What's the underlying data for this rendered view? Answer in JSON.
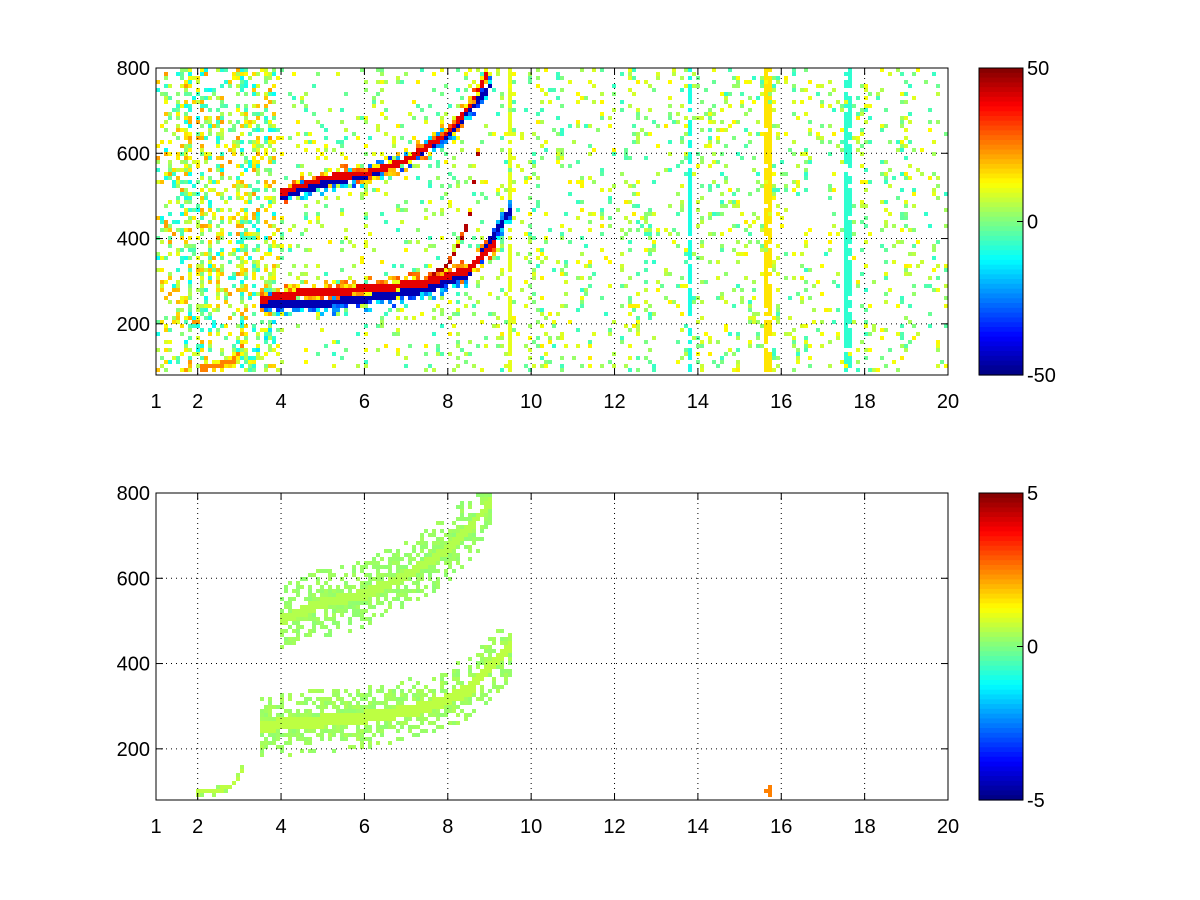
{
  "chart_data": [
    {
      "type": "heatmap",
      "title": "",
      "xlabel": "",
      "ylabel": "",
      "xlim": [
        1,
        20
      ],
      "ylim": [
        80,
        800
      ],
      "xticks": [
        1,
        2,
        4,
        6,
        8,
        10,
        12,
        14,
        16,
        18,
        20
      ],
      "xtick_labels": [
        "1",
        "2",
        "4",
        "6",
        "8",
        "10",
        "12",
        "14",
        "16",
        "18",
        "20"
      ],
      "yticks": [
        200,
        400,
        600,
        800
      ],
      "ytick_labels": [
        "200",
        "400",
        "600",
        "800"
      ],
      "grid": "dotted",
      "colormap": "jet",
      "colorbar": {
        "min": -50,
        "max": 50,
        "ticks": [
          50,
          0,
          -50
        ],
        "tick_labels": [
          "50",
          "0",
          "-50"
        ]
      },
      "features": [
        {
          "kind": "band",
          "x": [
            3.5,
            4.5,
            5.5,
            6.5,
            7.5,
            8.5,
            9.2
          ],
          "y": [
            250,
            265,
            270,
            278,
            290,
            320,
            390
          ],
          "value": 40,
          "width": 26,
          "thickness": 5
        },
        {
          "kind": "band",
          "x": [
            3.5,
            4.5,
            5.5,
            6.5,
            7.5,
            8.5,
            9.5
          ],
          "y": [
            240,
            240,
            245,
            258,
            275,
            310,
            460
          ],
          "value": -45,
          "width": 28,
          "thickness": 5
        },
        {
          "kind": "band",
          "x": [
            4.0,
            5.0,
            6.0,
            7.0,
            8.0,
            8.5,
            9.0
          ],
          "y": [
            500,
            535,
            545,
            575,
            640,
            700,
            790
          ],
          "value": 40,
          "width": 26,
          "thickness": 4
        },
        {
          "kind": "band",
          "x": [
            4.0,
            5.0,
            6.0,
            7.0,
            8.0,
            8.5,
            9.1
          ],
          "y": [
            490,
            520,
            540,
            575,
            635,
            690,
            760
          ],
          "value": -45,
          "width": 24,
          "thickness": 4
        },
        {
          "kind": "band",
          "x": [
            7.5,
            8.0,
            8.5,
            8.8
          ],
          "y": [
            300,
            330,
            430,
            650
          ],
          "value": 45,
          "width": 10,
          "thickness": 3
        },
        {
          "kind": "band",
          "x": [
            2.1,
            2.5,
            2.9,
            3.1
          ],
          "y": [
            90,
            95,
            110,
            150
          ],
          "value": 25,
          "width": 16,
          "thickness": 4
        },
        {
          "kind": "band",
          "x": [
            3.3,
            3.6,
            4.0
          ],
          "y": [
            110,
            155,
            230
          ],
          "value": -15,
          "width": 8,
          "thickness": 2
        }
      ],
      "stripes": [
        {
          "x": 15.7,
          "value": 15
        },
        {
          "x": 17.6,
          "value": -8
        },
        {
          "x": 13.8,
          "value": -10
        },
        {
          "x": 9.5,
          "value": 10
        }
      ]
    },
    {
      "type": "heatmap",
      "title": "",
      "xlabel": "",
      "ylabel": "",
      "xlim": [
        1,
        20
      ],
      "ylim": [
        80,
        800
      ],
      "xticks": [
        1,
        2,
        4,
        6,
        8,
        10,
        12,
        14,
        16,
        18,
        20
      ],
      "xtick_labels": [
        "1",
        "2",
        "4",
        "6",
        "8",
        "10",
        "12",
        "14",
        "16",
        "18",
        "20"
      ],
      "yticks": [
        200,
        400,
        600,
        800
      ],
      "ytick_labels": [
        "200",
        "400",
        "600",
        "800"
      ],
      "grid": "dotted",
      "colormap": "jet",
      "colorbar": {
        "min": -5,
        "max": 5,
        "ticks": [
          5,
          0,
          -5
        ],
        "tick_labels": [
          "5",
          "0",
          "-5"
        ]
      },
      "features": [
        {
          "kind": "band",
          "x": [
            3.5,
            4.5,
            5.5,
            6.5,
            7.5,
            8.5,
            9.5
          ],
          "y": [
            245,
            255,
            262,
            272,
            290,
            330,
            430
          ],
          "value": 0.6,
          "width": 75,
          "thickness": 8
        },
        {
          "kind": "band",
          "x": [
            4.0,
            5.0,
            6.0,
            7.0,
            8.0,
            8.5,
            9.1
          ],
          "y": [
            495,
            535,
            555,
            600,
            660,
            710,
            780
          ],
          "value": 0.5,
          "width": 80,
          "thickness": 7
        },
        {
          "kind": "band",
          "x": [
            2.0,
            2.5,
            2.9,
            3.1
          ],
          "y": [
            90,
            95,
            110,
            150
          ],
          "value": 0.6,
          "width": 10,
          "thickness": 3
        }
      ],
      "stripes": [
        {
          "x": 15.7,
          "value": 2.5,
          "ymax": 110
        }
      ]
    }
  ]
}
